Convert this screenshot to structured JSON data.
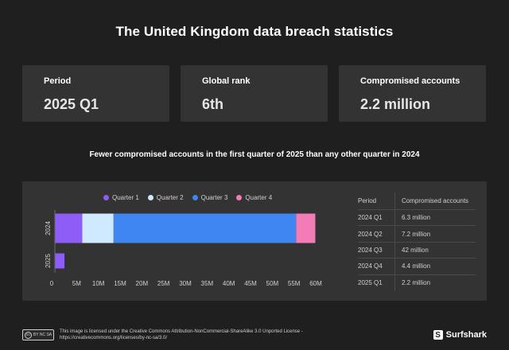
{
  "title": "The United Kingdom data breach statistics",
  "stats": [
    {
      "label": "Period",
      "value": "2025 Q1"
    },
    {
      "label": "Global rank",
      "value": "6th"
    },
    {
      "label": "Compromised accounts",
      "value": "2.2 million"
    }
  ],
  "subtitle": "Fewer compromised accounts in the first quarter of 2025 than any other quarter in 2024",
  "colors": {
    "Quarter 1": "#8e5cf7",
    "Quarter 2": "#cfeaff",
    "Quarter 3": "#3f86f2",
    "Quarter 4": "#f27bb8"
  },
  "chart_data": {
    "type": "bar",
    "orientation": "horizontal",
    "stacked": true,
    "categories": [
      "2024",
      "2025"
    ],
    "series": [
      {
        "name": "Quarter 1",
        "values": [
          6.3,
          2.2
        ]
      },
      {
        "name": "Quarter 2",
        "values": [
          7.2,
          0
        ]
      },
      {
        "name": "Quarter 3",
        "values": [
          42,
          0
        ]
      },
      {
        "name": "Quarter 4",
        "values": [
          4.4,
          0
        ]
      }
    ],
    "xticks": [
      "0",
      "5M",
      "10M",
      "15M",
      "20M",
      "25M",
      "30M",
      "35M",
      "40M",
      "45M",
      "50M",
      "55M",
      "60M"
    ],
    "xlim": [
      0,
      60
    ],
    "legend_position": "top",
    "grid": false
  },
  "table": {
    "headers": [
      "Period",
      "Compromised accounts"
    ],
    "rows": [
      [
        "2024 Q1",
        "6.3 million"
      ],
      [
        "2024 Q2",
        "7.2 million"
      ],
      [
        "2024 Q3",
        "42 million"
      ],
      [
        "2024 Q4",
        "4.4 million"
      ],
      [
        "2025 Q1",
        "2.2 million"
      ]
    ]
  },
  "footer": {
    "license": "This image is licensed under the Creative Commons Attribution-NonCommercial-ShareAlike 3.0 Unported License - https://creativecommons.org/licenses/by-nc-sa/3.0/",
    "cc_badge": "cc",
    "cc_badge_terms": "BY NC SA",
    "brand": "Surfshark"
  }
}
